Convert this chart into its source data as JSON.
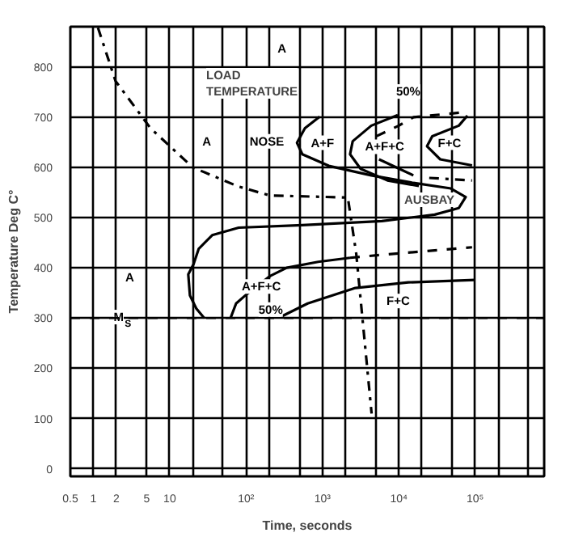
{
  "chart_data": {
    "type": "line",
    "xlabel": "Time, seconds",
    "ylabel": "Temperature Deg C°",
    "log": "x",
    "grid": true,
    "marker": "none",
    "xlim": [
      0.5,
      800000
    ],
    "ylim": [
      -15,
      880
    ],
    "xticks": [
      0.5,
      1,
      2,
      5,
      10,
      {
        "value": 20,
        "label": null
      },
      {
        "value": 50,
        "label": null
      },
      {
        "value": 100,
        "label": "10²"
      },
      {
        "value": 200,
        "label": null
      },
      {
        "value": 500,
        "label": null
      },
      {
        "value": 1000,
        "label": "10³"
      },
      {
        "value": 2000,
        "label": null
      },
      {
        "value": 5000,
        "label": null
      },
      {
        "value": 10000,
        "label": "10⁴"
      },
      {
        "value": 20000,
        "label": null
      },
      {
        "value": 50000,
        "label": null
      },
      {
        "value": 100000,
        "label": "10⁵"
      },
      {
        "value": 200000,
        "label": null
      },
      {
        "value": 500000,
        "label": null
      }
    ],
    "yticks": [
      0,
      100,
      200,
      300,
      400,
      500,
      600,
      700,
      800
    ],
    "series": [
      {
        "color": "#000000",
        "line_style": "dashdot",
        "x": [
          1.15,
          1.95,
          5.6,
          20,
          79,
          205,
          2150,
          2770,
          4400
        ],
        "values": [
          878,
          772,
          678,
          600,
          562,
          544,
          540,
          428,
          110
        ]
      },
      {
        "color": "#000000",
        "line_style": "solid",
        "x": [
          920,
          590,
          464,
          545,
          1210,
          4360,
          15500,
          48000,
          75000,
          61000,
          29500,
          6000,
          545,
          80,
          36,
          24,
          20.5,
          17.5,
          18.4,
          22.3,
          28.3
        ],
        "values": [
          701,
          678,
          649,
          626,
          603,
          584,
          569,
          558,
          541,
          519,
          506,
          493,
          485,
          480,
          465,
          438,
          407,
          387,
          345,
          319,
          300
        ]
      },
      {
        "color": "#000000",
        "line_style": "solid",
        "x": [
          9700,
          4360,
          2490,
          2300,
          3160,
          7100,
          18300
        ],
        "values": [
          704,
          683,
          652,
          626,
          597,
          574,
          563
        ]
      },
      {
        "color": "#000000",
        "line_style": "dashed",
        "x": [
          5100,
          10000,
          15600,
          65000
        ],
        "values": [
          662,
          683,
          700,
          709
        ]
      },
      {
        "color": "#000000",
        "line_style": "solid",
        "x": [
          79000,
          61000,
          27400,
          23400,
          34800,
          91000
        ],
        "values": [
          703,
          683,
          662,
          642,
          616,
          604
        ]
      },
      {
        "color": "#000000",
        "line_style": "solid",
        "x": [
          5500,
          15500
        ],
        "values": [
          616,
          584
        ]
      },
      {
        "color": "#000000",
        "line_style": "dashdot",
        "x": [
          25000,
          91000
        ],
        "values": [
          579,
          574
        ]
      },
      {
        "color": "#000000",
        "line_style": "solid",
        "x": [
          63,
          74,
          101,
          208,
          340,
          880,
          2300
        ],
        "values": [
          301,
          329,
          347,
          384,
          400,
          412,
          420
        ]
      },
      {
        "color": "#000000",
        "line_style": "dashed",
        "x": [
          2300,
          6000,
          91000
        ],
        "values": [
          420,
          426,
          441
        ]
      },
      {
        "color": "#000000",
        "line_style": "solid",
        "x": [
          288,
          640,
          2700,
          13300,
          100000
        ],
        "values": [
          303,
          329,
          360,
          371,
          376
        ]
      }
    ],
    "ref_lines": [
      {
        "axis": "y",
        "value": 300,
        "label": "M$_{S}$",
        "line_style": "dashed"
      }
    ],
    "annotations": [
      {
        "text": "A",
        "x": 295,
        "y": 837
      },
      "LOAD\nTEMPERATURE",
      {
        "text": "A",
        "x": 30.6,
        "y": 652
      },
      {
        "text": "NOSE",
        "x": 187,
        "y": 652
      },
      {
        "text": "A+F",
        "x": 1000,
        "y": 649
      },
      {
        "text": "A+F+C",
        "x": 6500,
        "y": 641
      },
      {
        "text": "F+C",
        "x": 46000,
        "y": 649
      },
      {
        "text": "50%",
        "x": 13300,
        "y": 751
      },
      "AUSBAY",
      {
        "text": "A",
        "x": 3,
        "y": 381
      },
      {
        "text": "A+F+C",
        "x": 158,
        "y": 363
      },
      {
        "text": "50%",
        "x": 210,
        "y": 317
      },
      {
        "text": "F+C",
        "x": 9800,
        "y": 334
      }
    ]
  }
}
